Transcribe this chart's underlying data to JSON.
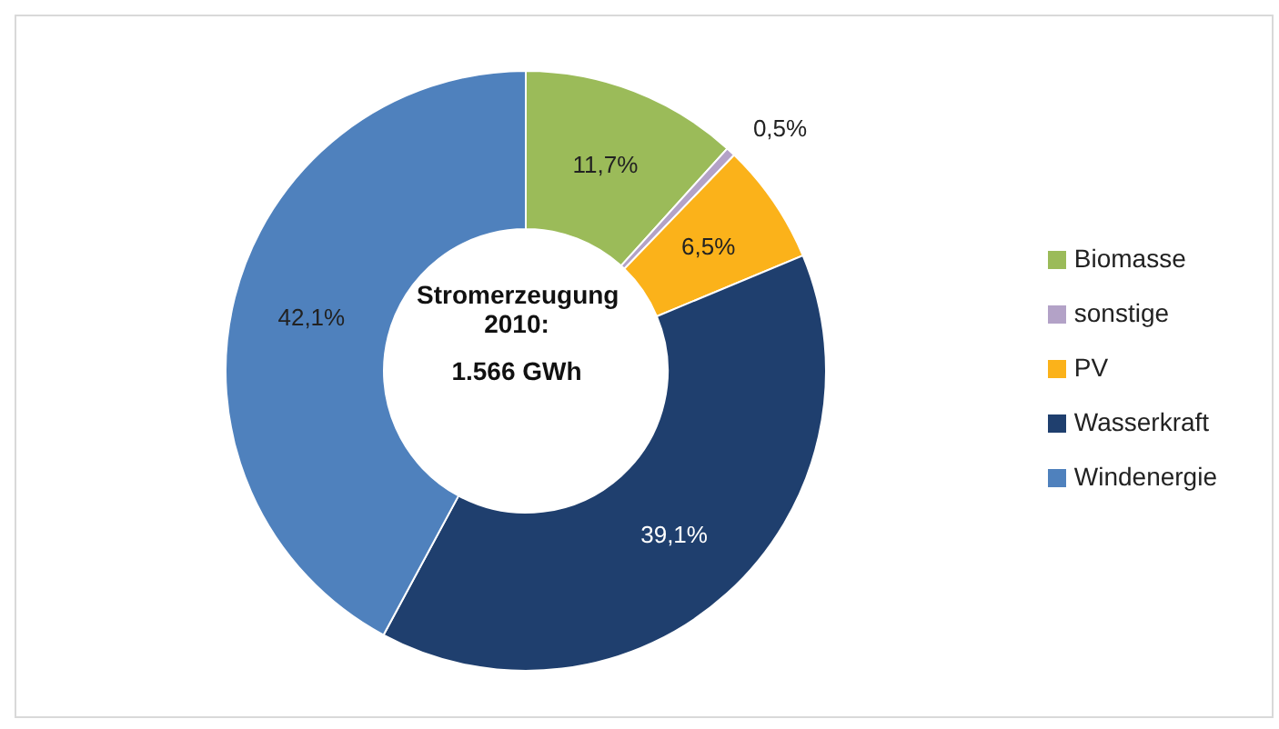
{
  "chart_data": {
    "type": "donut",
    "title": "Stromerzeugung 2010:",
    "subtitle": "1.566 GWh",
    "categories": [
      "Biomasse",
      "sonstige",
      "PV",
      "Wasserkraft",
      "Windenergie"
    ],
    "values": [
      11.7,
      0.5,
      6.5,
      39.1,
      42.1
    ],
    "colors": [
      "#9bbb59",
      "#b3a2c7",
      "#fbb21a",
      "#1f3f6e",
      "#4f81bd"
    ],
    "value_labels": [
      "11,7%",
      "0,5%",
      "6,5%",
      "39,1%",
      "42,1%"
    ],
    "legend": "right"
  }
}
